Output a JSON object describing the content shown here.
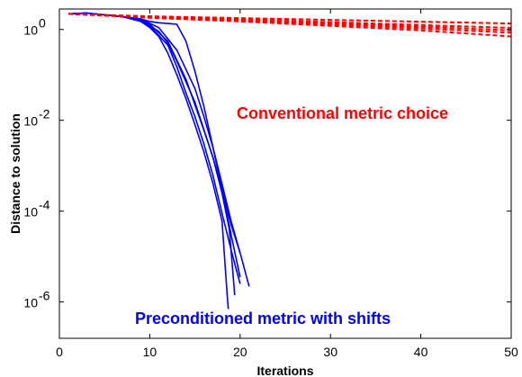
{
  "chart_data": {
    "type": "line",
    "xlabel": "Iterations",
    "ylabel": "Distance to solution",
    "xlim": [
      0,
      50
    ],
    "ylim_log10": [
      -6.8,
      0.45
    ],
    "yscale": "log",
    "x_ticks": [
      0,
      10,
      20,
      30,
      40,
      50
    ],
    "y_tick_exponents": [
      0,
      -2,
      -4,
      -6
    ],
    "y_tick_base": "10",
    "grid": false,
    "annotations": [
      {
        "text": "Conventional metric choice",
        "color": "#ff0000"
      },
      {
        "text": "Preconditioned metric with shifts",
        "color": "#0000ff"
      }
    ],
    "groups": [
      {
        "color": "#0000ff",
        "dash": "solid",
        "series": [
          {
            "points": [
              [
                1,
                2.2
              ],
              [
                3,
                2.3
              ],
              [
                5,
                2.1
              ],
              [
                7,
                1.9
              ],
              [
                9,
                1.6
              ],
              [
                10,
                1.2
              ],
              [
                12,
                0.45
              ],
              [
                13,
                0.15
              ],
              [
                14,
                0.04
              ],
              [
                15,
                0.012
              ],
              [
                16,
                0.003
              ],
              [
                17,
                0.0006
              ],
              [
                18,
                9e-05
              ],
              [
                19,
                1.4e-05
              ],
              [
                20,
                2.5e-06
              ]
            ]
          },
          {
            "points": [
              [
                1,
                2.2
              ],
              [
                3,
                2.3
              ],
              [
                5,
                2.1
              ],
              [
                7,
                1.9
              ],
              [
                9,
                1.7
              ],
              [
                10,
                1.3
              ],
              [
                12,
                0.55
              ],
              [
                14,
                0.08
              ],
              [
                16,
                0.006
              ],
              [
                17,
                0.0015
              ],
              [
                18,
                0.0003
              ],
              [
                19,
                5e-05
              ],
              [
                20,
                1.2e-05
              ],
              [
                21,
                2.2e-06
              ]
            ]
          },
          {
            "points": [
              [
                1,
                2.2
              ],
              [
                3,
                2.3
              ],
              [
                5,
                2.1
              ],
              [
                7,
                1.9
              ],
              [
                9,
                1.6
              ],
              [
                11,
                0.9
              ],
              [
                12,
                0.5
              ],
              [
                13,
                0.2
              ],
              [
                15,
                0.025
              ],
              [
                17,
                0.0015
              ],
              [
                18,
                0.00025
              ],
              [
                18.8,
                4e-05
              ],
              [
                19.4,
                1.4e-06
              ]
            ]
          },
          {
            "points": [
              [
                1,
                2.2
              ],
              [
                3,
                2.3
              ],
              [
                5,
                2.1
              ],
              [
                7,
                1.9
              ],
              [
                9,
                1.7
              ],
              [
                10,
                1.5
              ],
              [
                11,
                1.4
              ],
              [
                12,
                1.35
              ],
              [
                13,
                1.3
              ],
              [
                14,
                0.55
              ],
              [
                15,
                0.12
              ],
              [
                16,
                0.02
              ],
              [
                17,
                0.0025
              ],
              [
                18,
                0.0003
              ],
              [
                19,
                3e-05
              ],
              [
                20,
                3.5e-06
              ]
            ]
          },
          {
            "points": [
              [
                1,
                2.2
              ],
              [
                3,
                2.3
              ],
              [
                5,
                2.1
              ],
              [
                7,
                1.9
              ],
              [
                9,
                1.5
              ],
              [
                10,
                1.1
              ],
              [
                11,
                0.7
              ],
              [
                12,
                0.3
              ],
              [
                13,
                0.1
              ],
              [
                14,
                0.03
              ],
              [
                15,
                0.008
              ],
              [
                16,
                0.002
              ],
              [
                17,
                0.0004
              ],
              [
                18,
                6e-05
              ],
              [
                18.6,
                1.2e-06
              ],
              [
                18.7,
                7e-07
              ]
            ]
          },
          {
            "points": [
              [
                1,
                2.2
              ],
              [
                3,
                2.3
              ],
              [
                5,
                2.1
              ],
              [
                7,
                1.9
              ],
              [
                9,
                1.7
              ],
              [
                11,
                1.1
              ],
              [
                13,
                0.35
              ],
              [
                15,
                0.05
              ],
              [
                16,
                0.012
              ],
              [
                17,
                0.0025
              ],
              [
                18,
                0.0004
              ],
              [
                19,
                6e-05
              ],
              [
                20,
                1.2e-05
              ]
            ]
          }
        ]
      },
      {
        "color": "#ff0000",
        "dash": "dashed",
        "series": [
          {
            "points": [
              [
                1,
                2.2
              ],
              [
                10,
                1.95
              ],
              [
                20,
                1.78
              ],
              [
                30,
                1.62
              ],
              [
                40,
                1.48
              ],
              [
                50,
                1.35
              ]
            ]
          },
          {
            "points": [
              [
                1,
                2.2
              ],
              [
                10,
                1.9
              ],
              [
                20,
                1.68
              ],
              [
                30,
                1.45
              ],
              [
                40,
                1.25
              ],
              [
                50,
                1.08
              ]
            ]
          },
          {
            "points": [
              [
                1,
                2.2
              ],
              [
                10,
                1.85
              ],
              [
                20,
                1.58
              ],
              [
                30,
                1.3
              ],
              [
                40,
                1.05
              ],
              [
                50,
                0.85
              ]
            ]
          },
          {
            "points": [
              [
                1,
                2.2
              ],
              [
                10,
                1.8
              ],
              [
                20,
                1.5
              ],
              [
                30,
                1.2
              ],
              [
                40,
                0.95
              ],
              [
                50,
                0.7
              ]
            ]
          },
          {
            "points": [
              [
                1,
                2.2
              ],
              [
                10,
                1.88
              ],
              [
                20,
                1.62
              ],
              [
                30,
                1.38
              ],
              [
                40,
                1.15
              ],
              [
                50,
                0.95
              ]
            ]
          }
        ]
      }
    ]
  }
}
